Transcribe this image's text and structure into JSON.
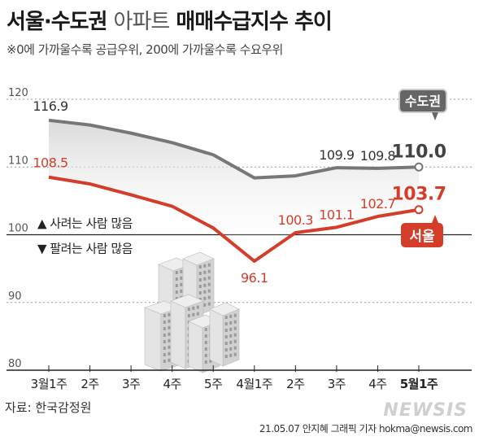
{
  "header": {
    "title_part1": "서울·수도권",
    "title_part2": "아파트",
    "title_part3": "매매수급지수 추이",
    "subtitle": "※0에 가까울수록 공급우위, 200에 가까울수록 수요우위"
  },
  "legend": {
    "up_text": "▲ 사려는 사람 많음",
    "down_text": "▼ 팔려는 사람 많음"
  },
  "source": "자료: 한국감정원",
  "credit": {
    "date": "21.05.07",
    "author": "안지혜 그래픽 기자",
    "email": "hokma@newsis.com"
  },
  "logo": "NEWSIS",
  "colors": {
    "capital_line": "#777777",
    "seoul_line": "#d43d2a",
    "capital_badge": "#666666",
    "seoul_badge": "#d43d2a",
    "fill_top": "#dcdcdc"
  },
  "chart_data": {
    "type": "line",
    "title": "서울·수도권 아파트 매매수급지수 추이",
    "categories": [
      "3월1주",
      "2주",
      "3주",
      "4주",
      "5주",
      "4월1주",
      "2주",
      "3주",
      "4주",
      "5월1주"
    ],
    "ylim": [
      80,
      120
    ],
    "yticks": [
      80,
      90,
      100,
      110,
      120
    ],
    "grid": true,
    "series": [
      {
        "name": "수도권",
        "values": [
          116.9,
          116.2,
          115.0,
          113.6,
          111.8,
          108.4,
          108.7,
          109.9,
          109.8,
          110.0
        ],
        "labels": {
          "0": "116.9",
          "7": "109.9",
          "8": "109.8",
          "9": "110.0"
        }
      },
      {
        "name": "서울",
        "values": [
          108.5,
          107.5,
          105.9,
          104.2,
          101.0,
          96.1,
          100.3,
          101.1,
          102.7,
          103.7
        ],
        "labels": {
          "0": "108.5",
          "5": "96.1",
          "6": "100.3",
          "7": "101.1",
          "8": "102.7",
          "9": "103.7"
        }
      }
    ]
  }
}
